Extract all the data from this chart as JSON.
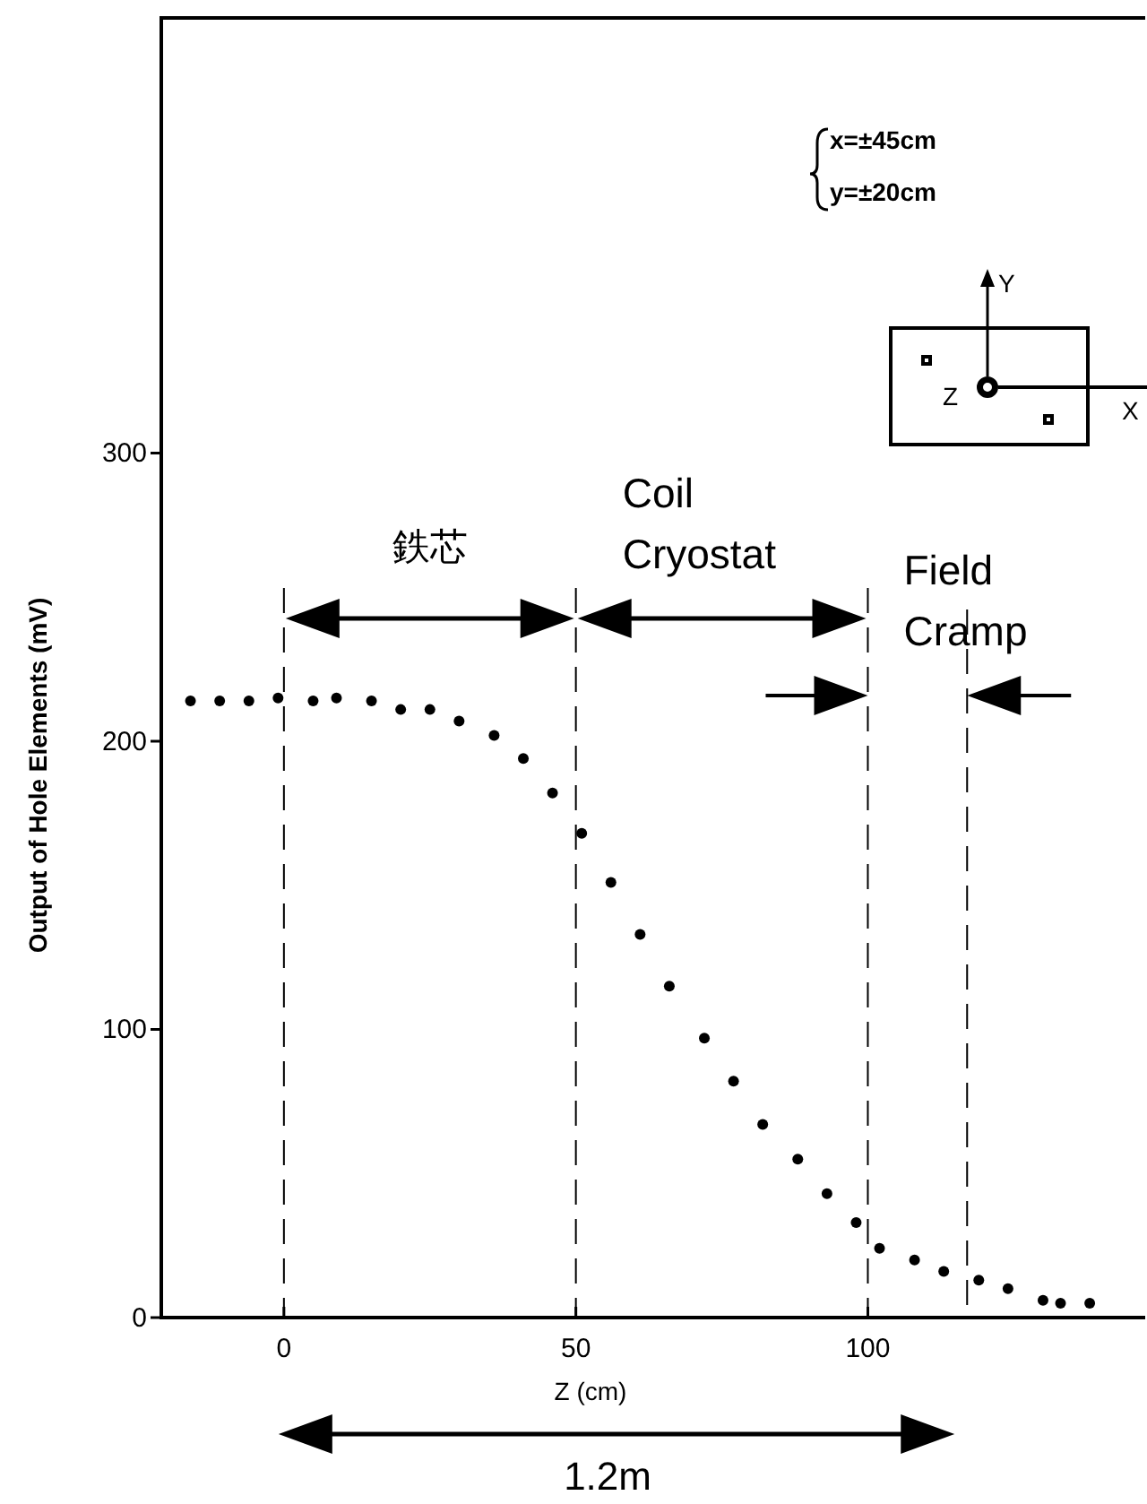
{
  "chart_data": {
    "type": "scatter",
    "xlabel": "Z (cm)",
    "ylabel": "Output of Hole Elements (mV)",
    "x": [
      -16,
      -11,
      -6,
      -1,
      5,
      9,
      15,
      20,
      25,
      30,
      36,
      41,
      46,
      51,
      56,
      61,
      66,
      72,
      77,
      82,
      88,
      93,
      98,
      102,
      108,
      113,
      119,
      124,
      130,
      133,
      138
    ],
    "series": [
      {
        "color": "#000000",
        "values": [
          214,
          214,
          214,
          215,
          214,
          215,
          214,
          211,
          211,
          207,
          202,
          194,
          182,
          168,
          151,
          133,
          115,
          97,
          82,
          67,
          55,
          43,
          33,
          24,
          20,
          16,
          13,
          10,
          6,
          5,
          5
        ]
      }
    ],
    "xlim": [
      -21,
      147.5
    ],
    "ylim": [
      0,
      451
    ],
    "xticks": [
      0,
      50,
      100
    ],
    "yticks": [
      0,
      100,
      200,
      300
    ],
    "marker": "circle",
    "grid": false,
    "ref_lines": [
      {
        "axis": "x",
        "value": 0,
        "line_style": "dashed",
        "color": "#000000"
      },
      {
        "axis": "x",
        "value": 50,
        "line_style": "dashed",
        "color": "#000000"
      },
      {
        "axis": "x",
        "value": 100,
        "line_style": "dashed",
        "color": "#000000"
      },
      {
        "axis": "x",
        "value": 117,
        "line_style": "dashed",
        "color": "#000000"
      }
    ],
    "annotations": [
      "鉄芯",
      "Coil\nCryostat",
      "Field\nCramp",
      "1.2m",
      "x=±45cm",
      "y=±20cm",
      "Y",
      "Z",
      "X"
    ]
  }
}
